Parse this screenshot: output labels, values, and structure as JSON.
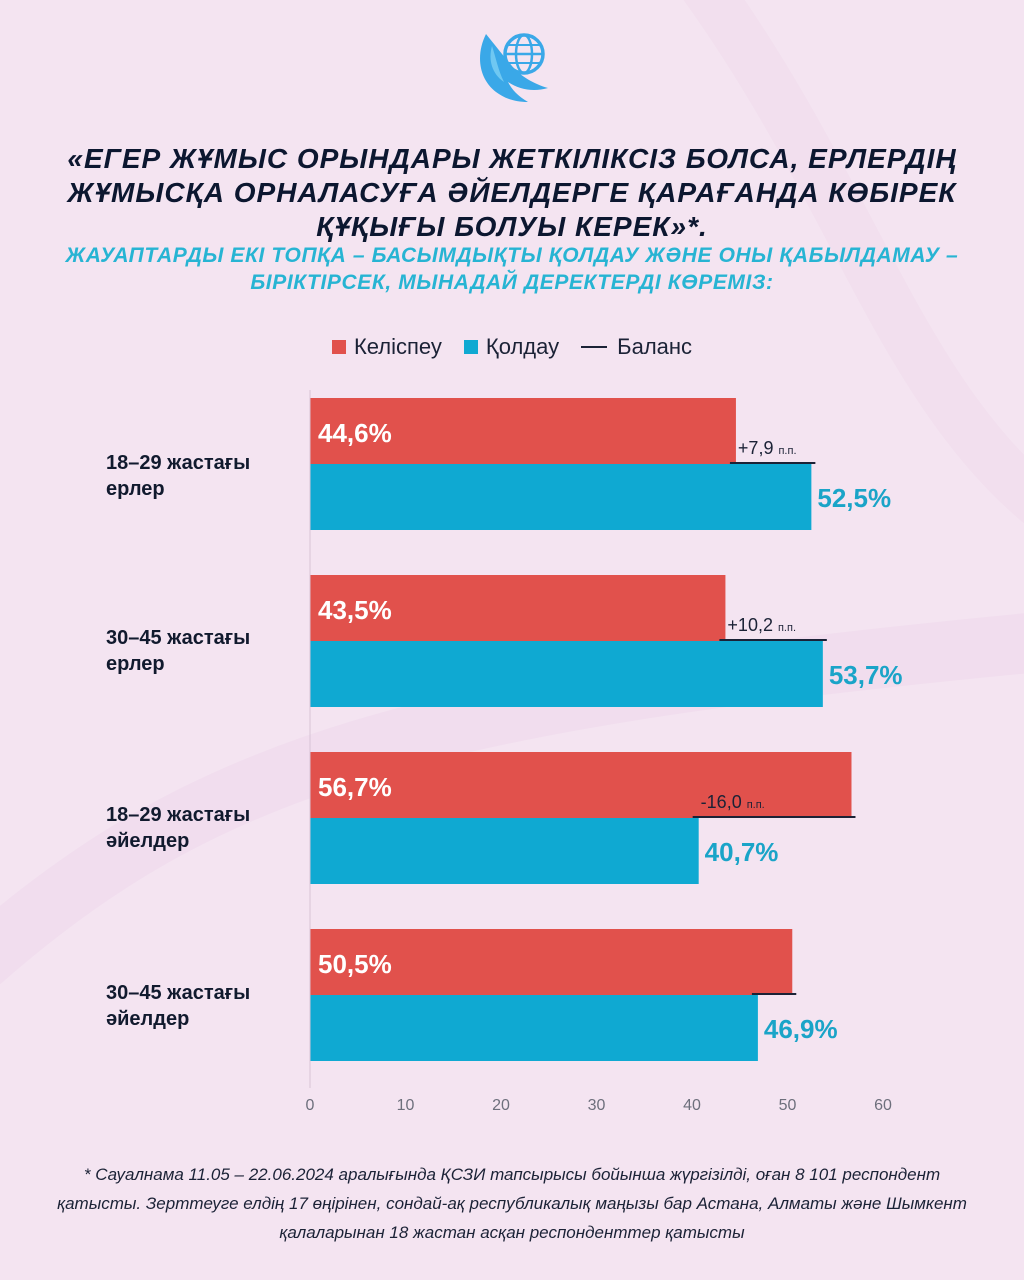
{
  "title": "«ЕГЕР ЖҰМЫС ОРЫНДАРЫ ЖЕТКІЛІКСІЗ БОЛСА, ЕРЛЕРДІҢ ЖҰМЫСҚА ОРНАЛАСУҒА ӘЙЕЛДЕРГЕ ҚАРАҒАНДА КӨБІРЕК ҚҰҚЫҒЫ БОЛУЫ КЕРЕК»*.",
  "subtitle": "ЖАУАПТАРДЫ ЕКІ ТОПҚА – БАСЫМДЫҚТЫ ҚОЛДАУ ЖӘНЕ ОНЫ ҚАБЫЛДАМАУ – БІРІКТІРСЕК, МЫНАДАЙ ДЕРЕКТЕРДІ КӨРЕМІЗ:",
  "legend": {
    "disagree": "Келіспеу",
    "support": "Қолдау",
    "balance": "Баланс"
  },
  "colors": {
    "disagree": "#e1514c",
    "support": "#0fa9d2",
    "support_label": "#1aa4c8",
    "balance_line": "#1b2236",
    "background": "#f4e4f1"
  },
  "icons": {
    "logo": "eagle-globe-logo"
  },
  "chart_data": {
    "type": "bar",
    "orientation": "horizontal",
    "categories": [
      "18–29 жастағы ерлер",
      "30–45 жастағы ерлер",
      "18–29 жастағы әйелдер",
      "30–45 жастағы әйелдер"
    ],
    "category_lines": [
      [
        "18–29 жастағы",
        "ерлер"
      ],
      [
        "30–45 жастағы",
        "ерлер"
      ],
      [
        "18–29 жастағы",
        "әйелдер"
      ],
      [
        "30–45 жастағы",
        "әйелдер"
      ]
    ],
    "series": [
      {
        "name": "Келіспеу",
        "values": [
          44.6,
          43.5,
          56.7,
          50.5
        ],
        "labels": [
          "44,6%",
          "43,5%",
          "56,7%",
          "50,5%"
        ]
      },
      {
        "name": "Қолдау",
        "values": [
          52.5,
          53.7,
          40.7,
          46.9
        ],
        "labels": [
          "52,5%",
          "53,7%",
          "40,7%",
          "46,9%"
        ]
      }
    ],
    "balance": {
      "name": "Баланс",
      "values": [
        7.9,
        10.2,
        -16.0,
        -3.6
      ],
      "labels": [
        "+7,9",
        "+10,2",
        "-16,0",
        ""
      ],
      "unit": "п.п."
    },
    "xticks": [
      0,
      10,
      20,
      30,
      40,
      50,
      60
    ],
    "xlim": [
      0,
      60
    ],
    "grid": false,
    "legend_position": "top"
  },
  "footnote": "* Сауалнама 11.05 – 22.06.2024 аралығында ҚСЗИ тапсырысы бойынша жүргізілді, оған 8 101 респондент қатысты. Зерттеуге елдің 17 өңірінен, сондай-ақ республикалық маңызы бар Астана, Алматы және Шымкент қалаларынан 18 жастан асқан респонденттер қатысты"
}
